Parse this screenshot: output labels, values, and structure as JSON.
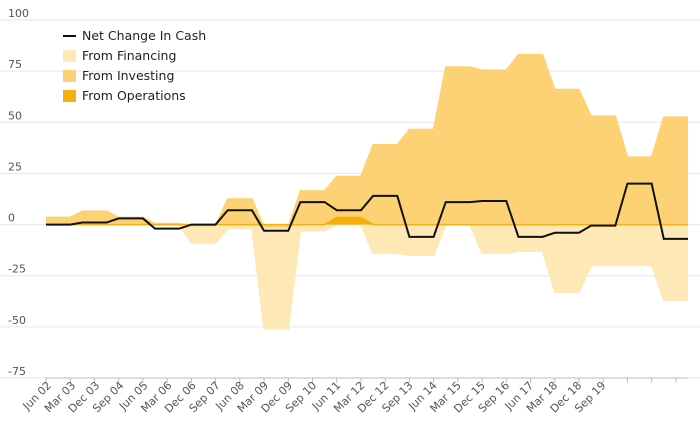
{
  "chart_data": {
    "type": "area",
    "ylim": [
      -75,
      100
    ],
    "y_ticks": [
      100,
      75,
      50,
      25,
      0,
      -25,
      -50,
      -75
    ],
    "x_tick_labels": [
      "Jun 02",
      "Mar 03",
      "Dec 03",
      "Sep 04",
      "Jun 05",
      "Mar 06",
      "Dec 06",
      "Sep 07",
      "Jun 08",
      "Mar 09",
      "Dec 09",
      "Sep 10",
      "Jun 11",
      "Mar 12",
      "Dec 12",
      "Sep 13",
      "Jun 14",
      "Mar 15",
      "Dec 15",
      "Sep 16",
      "Jun 17",
      "Mar 18",
      "Dec 18",
      "Sep 19"
    ],
    "grid": true,
    "legend_position": "top-left",
    "series": [
      {
        "name": "Net Change In Cash",
        "kind": "line",
        "color": "#111111",
        "values": [
          0,
          0,
          0,
          1,
          1,
          1,
          3,
          3,
          3,
          -2,
          -2,
          -2,
          0,
          0,
          0,
          7,
          7,
          7,
          -3,
          -3,
          -3,
          11,
          11,
          11,
          7,
          7,
          7,
          14,
          14,
          14,
          -6,
          -6,
          -6,
          11,
          11,
          11,
          11.5,
          11.5,
          11.5,
          -6,
          -6,
          -6,
          -4,
          -4,
          -4,
          -0.5,
          -0.5,
          -0.5,
          20,
          20,
          20,
          -7,
          -7,
          -7
        ]
      },
      {
        "name": "From Financing",
        "kind": "area",
        "color": "#fde8b6",
        "values": [
          0,
          0,
          0,
          0,
          0,
          0,
          0,
          0,
          0,
          0,
          0,
          0,
          -9,
          -9,
          -9,
          -2,
          -2,
          -2,
          -51,
          -51,
          -51,
          -3,
          -3,
          -3,
          0,
          0,
          0,
          -14,
          -14,
          -14,
          -15,
          -15,
          -15,
          0,
          0,
          0,
          -14,
          -14,
          -14,
          -13,
          -13,
          -13,
          -33,
          -33,
          -33,
          -20,
          -20,
          -20,
          -20,
          -20,
          -20,
          -37,
          -37,
          -37
        ]
      },
      {
        "name": "From Investing",
        "kind": "area",
        "color": "#fcd274",
        "values": [
          3.5,
          3.5,
          3.5,
          6.5,
          6.5,
          6.5,
          3.5,
          3.5,
          3.5,
          0.5,
          0.5,
          0.5,
          -0.5,
          -0.5,
          -0.5,
          12.5,
          12.5,
          12.5,
          -1,
          -1,
          -1,
          16.5,
          16.5,
          16.5,
          23.5,
          23.5,
          23.5,
          39,
          39,
          39,
          46.5,
          46.5,
          46.5,
          77,
          77,
          77,
          75.5,
          75.5,
          75.5,
          83,
          83,
          83,
          66,
          66,
          66,
          53,
          53,
          53,
          33,
          33,
          33,
          52.5,
          52.5,
          52.5
        ]
      },
      {
        "name": "From Operations",
        "kind": "area",
        "color": "#f4ae0d",
        "values": [
          0,
          0,
          0,
          0,
          0,
          0,
          0,
          0,
          0,
          0,
          0,
          0,
          0,
          0,
          0,
          0,
          0,
          0,
          0,
          0,
          0,
          0,
          0,
          0,
          3.5,
          3.5,
          3.5,
          0,
          0,
          0,
          0,
          0,
          0,
          0,
          0,
          0,
          0,
          0,
          0,
          0,
          0,
          0,
          0,
          0,
          0,
          0,
          0,
          0,
          0,
          0,
          0,
          0,
          0,
          0
        ]
      }
    ]
  }
}
